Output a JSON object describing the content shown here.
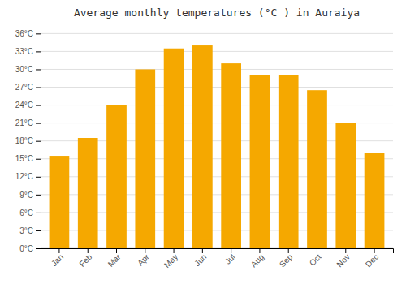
{
  "chart_data": {
    "type": "bar",
    "title": "Average monthly temperatures (°C ) in Auraiya",
    "categories": [
      "Jan",
      "Feb",
      "Mar",
      "Apr",
      "May",
      "Jun",
      "Jul",
      "Aug",
      "Sep",
      "Oct",
      "Nov",
      "Dec"
    ],
    "values": [
      15.5,
      18.5,
      24.0,
      30.0,
      33.5,
      34.0,
      31.0,
      29.0,
      29.0,
      26.5,
      21.0,
      16.0
    ],
    "color": "#F5A800",
    "ylim": [
      0,
      37
    ],
    "yticks": [
      {
        "value": 0,
        "label": "0°C"
      },
      {
        "value": 3,
        "label": "3°C"
      },
      {
        "value": 6,
        "label": "6°C"
      },
      {
        "value": 9,
        "label": "9°C"
      },
      {
        "value": 12,
        "label": "12°C"
      },
      {
        "value": 15,
        "label": "15°C"
      },
      {
        "value": 18,
        "label": "18°C"
      },
      {
        "value": 21,
        "label": "21°C"
      },
      {
        "value": 24,
        "label": "24°C"
      },
      {
        "value": 27,
        "label": "27°C"
      },
      {
        "value": 30,
        "label": "30°C"
      },
      {
        "value": 33,
        "label": "33°C"
      },
      {
        "value": 36,
        "label": "36°C"
      }
    ],
    "grid": true
  }
}
